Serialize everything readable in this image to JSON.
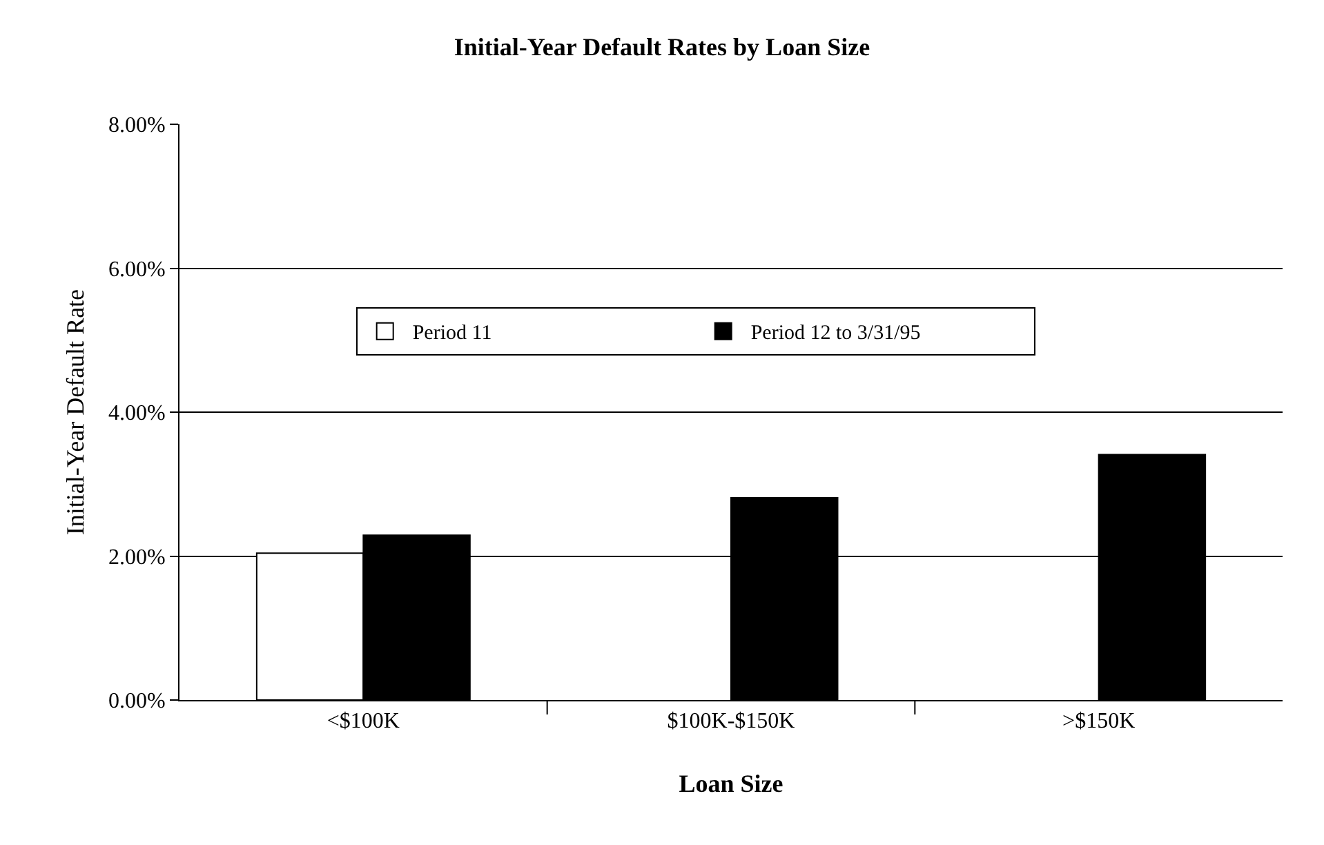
{
  "chart_data": {
    "type": "bar",
    "title": "Initial-Year Default Rates by Loan Size",
    "xlabel": "Loan Size",
    "ylabel": "Initial-Year Default Rate",
    "categories": [
      "<$100K",
      "$100K-$150K",
      ">$150K"
    ],
    "series": [
      {
        "name": "Period 11",
        "color": "#ffffff",
        "values": [
          2.04,
          null,
          null
        ]
      },
      {
        "name": "Period 12 to 3/31/95",
        "color": "#000000",
        "values": [
          2.29,
          2.81,
          3.41
        ]
      }
    ],
    "ylim": [
      0,
      8
    ],
    "yticks": [
      {
        "value": 0,
        "label": "0.00%"
      },
      {
        "value": 2,
        "label": "2.00%"
      },
      {
        "value": 4,
        "label": "4.00%"
      },
      {
        "value": 6,
        "label": "6.00%"
      },
      {
        "value": 8,
        "label": "8.00%"
      }
    ],
    "grid": "y",
    "legend": "top left"
  }
}
